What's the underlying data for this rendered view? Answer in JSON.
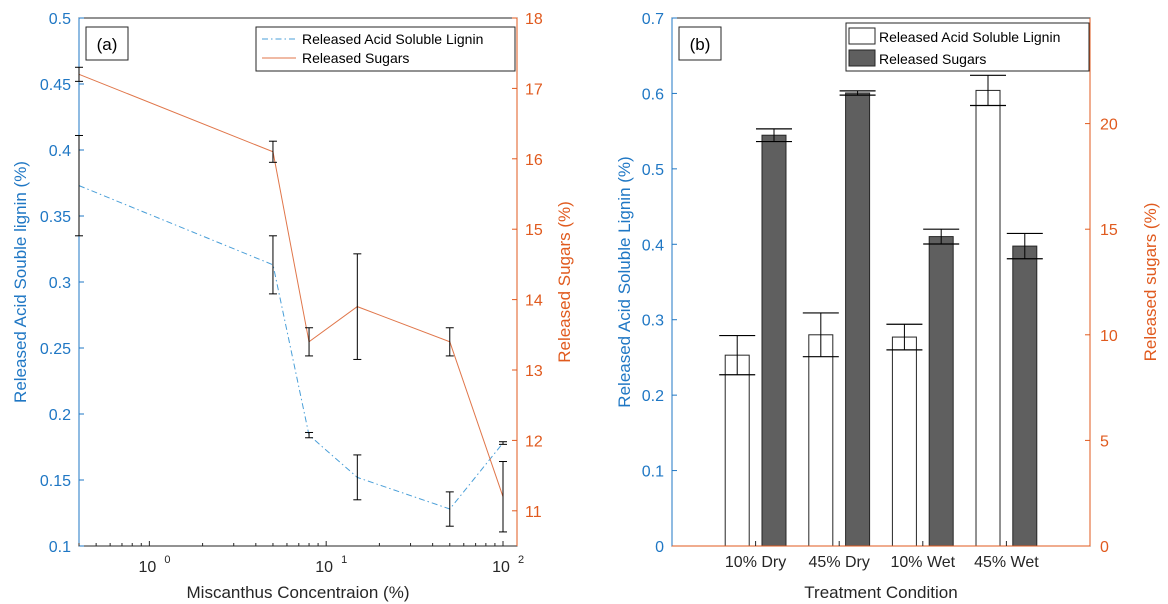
{
  "colors": {
    "left_axis": "#1f77c4",
    "right_axis": "#e05a1e",
    "lignin_line": "#4a9fd8",
    "sugar_line": "#e0764a",
    "bar_filled": "#5f5f5f",
    "bar_open": "#ffffff",
    "axis_black": "#262626",
    "error_bar": "#000000"
  },
  "chart_data": [
    {
      "type": "line",
      "panel_label": "(a)",
      "xlabel": "Miscanthus Concentraion (%)",
      "ylabel_left": "Released Acid Souble lignin (%)",
      "ylabel_right": "Released Sugars (%)",
      "x_scale": "log",
      "xlim": [
        0.4,
        120
      ],
      "x_ticks": [
        1,
        10,
        100
      ],
      "x_tick_labels": [
        "10",
        "10",
        "10"
      ],
      "x_tick_exponents": [
        "0",
        "1",
        "2"
      ],
      "ylim_left": [
        0.1,
        0.5
      ],
      "y_ticks_left": [
        "0.1",
        "0.15",
        "0.2",
        "0.25",
        "0.3",
        "0.35",
        "0.4",
        "0.45",
        "0.5"
      ],
      "ylim_right": [
        10.5,
        18
      ],
      "y_ticks_right": [
        "11",
        "12",
        "13",
        "14",
        "15",
        "16",
        "17",
        "18"
      ],
      "legend_position": "top-right",
      "series": [
        {
          "name": "Released Acid Soluble Lignin",
          "axis": "left",
          "style": "dash-dot",
          "x": [
            0.4,
            5,
            8,
            15,
            50,
            100
          ],
          "y": [
            0.373,
            0.313,
            0.184,
            0.152,
            0.128,
            0.178
          ],
          "err": [
            0.038,
            0.022,
            0.002,
            0.017,
            0.013,
            0.001
          ]
        },
        {
          "name": "Released Sugars",
          "axis": "right",
          "style": "solid",
          "x": [
            0.4,
            5,
            8,
            15,
            50,
            100
          ],
          "y": [
            17.2,
            16.1,
            13.4,
            13.9,
            13.4,
            11.2
          ],
          "err": [
            0.1,
            0.15,
            0.2,
            0.75,
            0.2,
            0.5
          ]
        }
      ]
    },
    {
      "type": "bar",
      "panel_label": "(b)",
      "xlabel": "Treatment Condition",
      "ylabel_left": "Released Acid Soluble Lignin (%)",
      "ylabel_right": "Released sugars (%)",
      "categories": [
        "10% Dry",
        "45% Dry",
        "10% Wet",
        "45% Wet"
      ],
      "ylim_left": [
        0,
        0.7
      ],
      "y_ticks_left": [
        "0",
        "0.1",
        "0.2",
        "0.3",
        "0.4",
        "0.5",
        "0.6",
        "0.7"
      ],
      "ylim_right": [
        0,
        25
      ],
      "y_ticks_right": [
        "0",
        "5",
        "10",
        "15",
        "20"
      ],
      "legend_position": "top-right",
      "series": [
        {
          "name": "Released Acid Soluble Lignin",
          "axis": "left",
          "fill": "open",
          "values": [
            0.253,
            0.28,
            0.277,
            0.604
          ],
          "err": [
            0.026,
            0.029,
            0.017,
            0.02
          ]
        },
        {
          "name": "Released Sugars",
          "axis": "right",
          "fill": "filled",
          "values": [
            19.45,
            21.45,
            14.65,
            14.2
          ],
          "err": [
            0.3,
            0.1,
            0.35,
            0.6
          ]
        }
      ]
    }
  ]
}
